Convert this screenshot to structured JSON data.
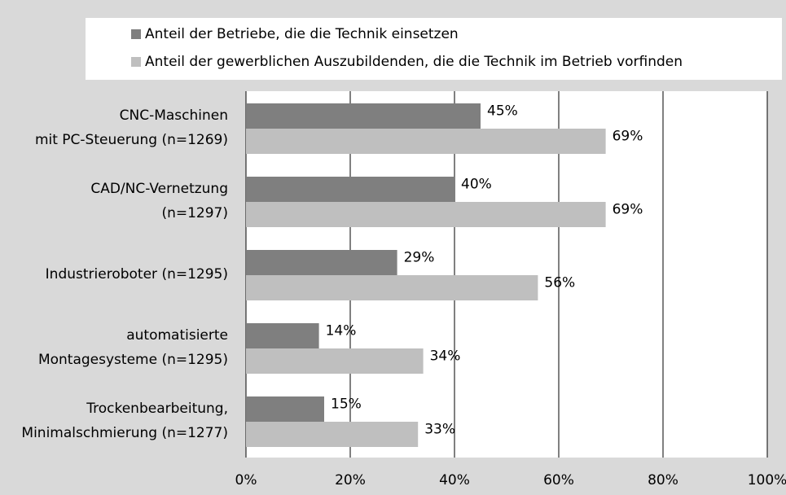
{
  "chart_data": {
    "type": "barh",
    "categories": [
      [
        "CNC-Maschinen",
        "mit PC-Steuerung (n=1269)"
      ],
      [
        "CAD/NC-Vernetzung",
        "(n=1297)"
      ],
      [
        "Industrieroboter (n=1295)"
      ],
      [
        "automatisierte",
        "Montagesysteme (n=1295)"
      ],
      [
        "Trockenbearbeitung,",
        "Minimalschmierung (n=1277)"
      ]
    ],
    "series": [
      {
        "name": "Anteil der Betriebe, die die Technik einsetzen",
        "color": "#7f7f7f",
        "values": [
          45,
          40,
          29,
          14,
          15
        ],
        "value_labels": [
          "45%",
          "40%",
          "29%",
          "14%",
          "15%"
        ]
      },
      {
        "name": "Anteil der gewerblichen Auszubildenden, die die Technik im Betrieb vorfinden",
        "color": "#bfbfbf",
        "values": [
          69,
          69,
          56,
          34,
          33
        ],
        "value_labels": [
          "69%",
          "69%",
          "56%",
          "34%",
          "33%"
        ]
      }
    ],
    "xlim": [
      0,
      100
    ],
    "xticks": [
      {
        "value": 0,
        "label": "0%"
      },
      {
        "value": 20,
        "label": "20%"
      },
      {
        "value": 40,
        "label": "40%"
      },
      {
        "value": 60,
        "label": "60%"
      },
      {
        "value": 80,
        "label": "80%"
      },
      {
        "value": 100,
        "label": "100%"
      }
    ],
    "grid": true
  }
}
